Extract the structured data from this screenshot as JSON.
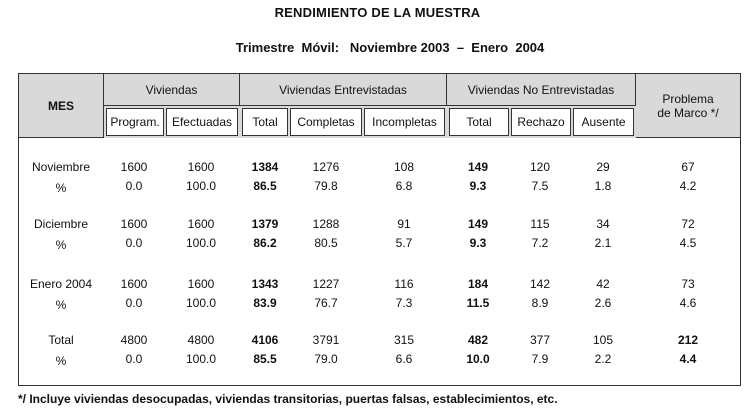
{
  "title": "RENDIMIENTO DE LA MUESTRA",
  "subtitle": "Trimestre  Móvil:   Noviembre 2003  –  Enero  2004",
  "headers": {
    "mes": "MES",
    "viviendas": "Viviendas",
    "entrevistadas": "Viviendas Entrevistadas",
    "no_entrevistadas": "Viviendas No Entrevistadas",
    "problema": "Problema\nde Marco  */",
    "program": "Program.",
    "efectuadas": "Efectuadas",
    "total1": "Total",
    "completas": "Completas",
    "incompletas": "Incompletas",
    "total2": "Total",
    "rechazo": "Rechazo",
    "ausente": "Ausente"
  },
  "rows": [
    {
      "label": "Noviembre",
      "cells": [
        "1600",
        "1600",
        "1384",
        "1276",
        "108",
        "149",
        "120",
        "29",
        "67"
      ]
    },
    {
      "label": "%",
      "cells": [
        "0.0",
        "100.0",
        "86.5",
        "79.8",
        "6.8",
        "9.3",
        "7.5",
        "1.8",
        "4.2"
      ]
    },
    {
      "label": "Diciembre",
      "cells": [
        "1600",
        "1600",
        "1379",
        "1288",
        "91",
        "149",
        "115",
        "34",
        "72"
      ]
    },
    {
      "label": "%",
      "cells": [
        "0.0",
        "100.0",
        "86.2",
        "80.5",
        "5.7",
        "9.3",
        "7.2",
        "2.1",
        "4.5"
      ]
    },
    {
      "label": "Enero 2004",
      "cells": [
        "1600",
        "1600",
        "1343",
        "1227",
        "116",
        "184",
        "142",
        "42",
        "73"
      ]
    },
    {
      "label": "%",
      "cells": [
        "0.0",
        "100.0",
        "83.9",
        "76.7",
        "7.3",
        "11.5",
        "8.9",
        "2.6",
        "4.6"
      ]
    },
    {
      "label": "Total",
      "cells": [
        "4800",
        "4800",
        "4106",
        "3791",
        "315",
        "482",
        "377",
        "105",
        "212"
      ]
    },
    {
      "label": "%",
      "cells": [
        "0.0",
        "100.0",
        "85.5",
        "79.0",
        "6.6",
        "10.0",
        "7.9",
        "2.2",
        "4.4"
      ]
    }
  ],
  "footnote": "*/ Incluye viviendas desocupadas, viviendas transitorias, puertas falsas, establecimientos, etc."
}
